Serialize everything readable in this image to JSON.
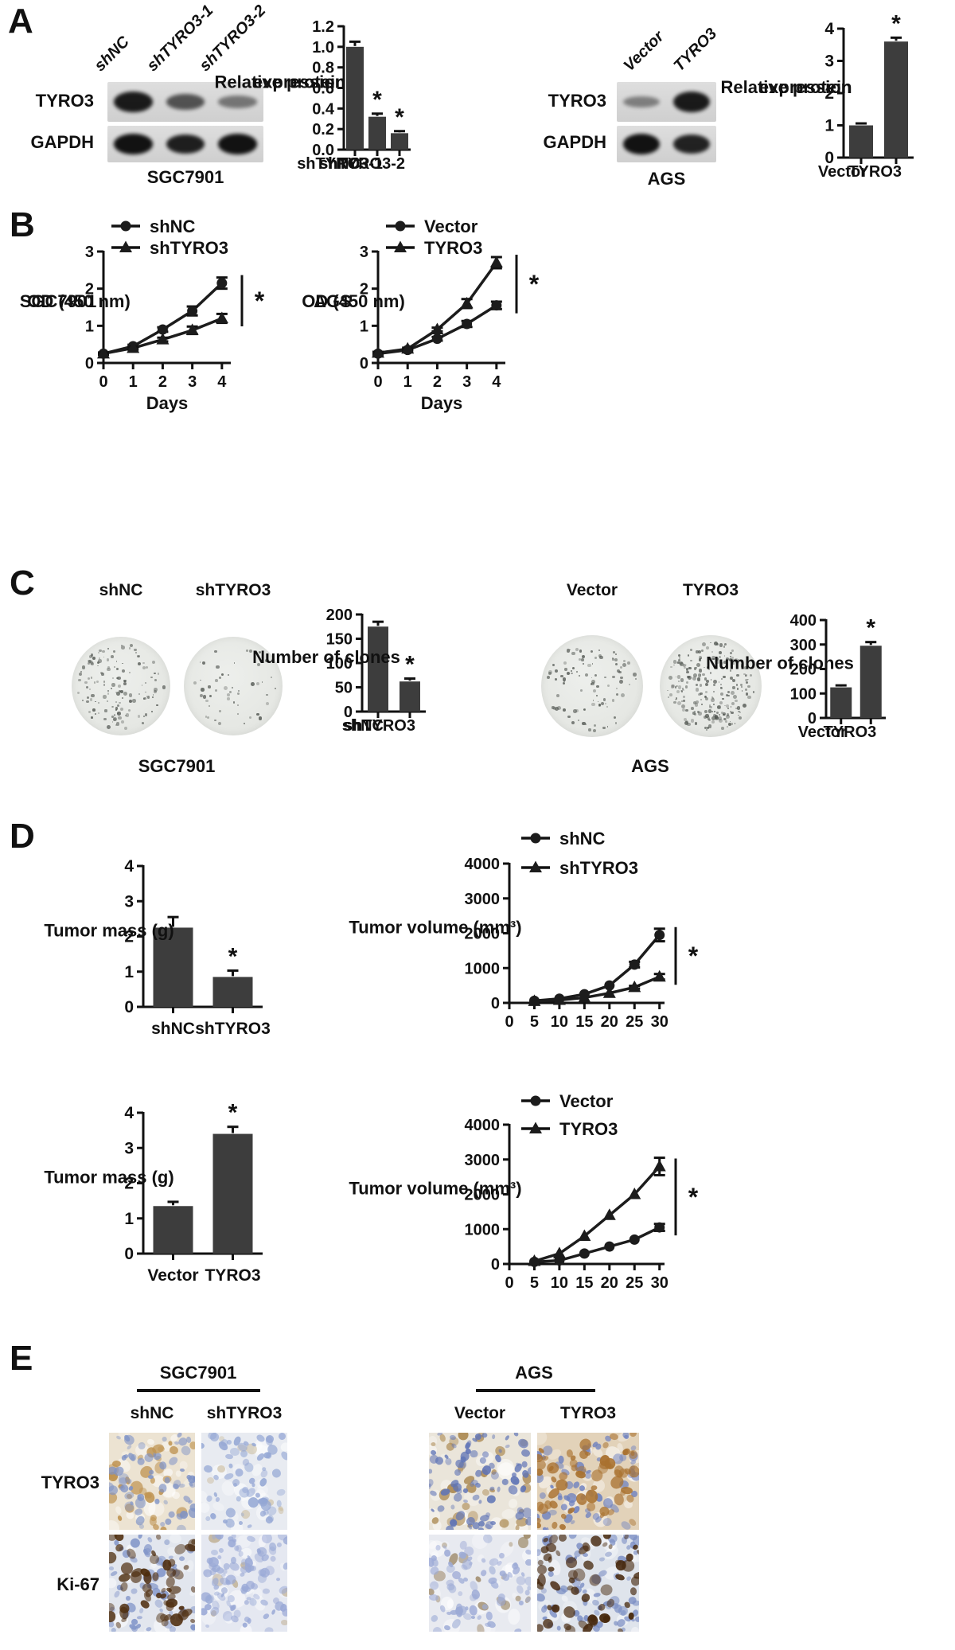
{
  "colors": {
    "ink": "#111111",
    "bar": "#3d3d3d",
    "blot_bg": "#d6d6d6"
  },
  "panels": {
    "A": {
      "label": "A",
      "left": {
        "lane_labels": [
          "shNC",
          "shTYRO3-1",
          "shTYRO3-2"
        ],
        "blot_rows": [
          {
            "label": "TYRO3",
            "bands": [
              0.95,
              0.6,
              0.38
            ]
          },
          {
            "label": "GAPDH",
            "bands": [
              1,
              0.92,
              1
            ]
          }
        ],
        "cell_line": "SGC7901"
      },
      "right": {
        "lane_labels": [
          "Vector",
          "TYRO3"
        ],
        "blot_rows": [
          {
            "label": "TYRO3",
            "bands": [
              0.32,
              0.95
            ]
          },
          {
            "label": "GAPDH",
            "bands": [
              1,
              0.9
            ]
          }
        ],
        "cell_line": "AGS"
      }
    },
    "B": {
      "label": "B"
    },
    "C": {
      "label": "C",
      "left": {
        "dish_labels": [
          "shNC",
          "shTYRO3"
        ],
        "cell_line": "SGC7901"
      },
      "right": {
        "dish_labels": [
          "Vector",
          "TYRO3"
        ],
        "cell_line": "AGS"
      }
    },
    "D": {
      "label": "D"
    },
    "E": {
      "label": "E",
      "groups": [
        {
          "name": "SGC7901",
          "columns": [
            "shNC",
            "shTYRO3"
          ]
        },
        {
          "name": "AGS",
          "columns": [
            "Vector",
            "TYRO3"
          ]
        }
      ],
      "rows": [
        "TYRO3",
        "Ki-67"
      ],
      "stain_colors": {
        "hematoxylin_blue": "#7b8ec4",
        "dab_brown": "#8a5a22"
      },
      "tiles": [
        {
          "row": "TYRO3",
          "column": "shNC",
          "base": "#ece3d2",
          "nucleus": "#7e92c6",
          "stain": "#bf9452",
          "nucleus_density": 0.5,
          "stain_density": 0.3,
          "stain_on_top": false
        },
        {
          "row": "TYRO3",
          "column": "shTYRO3",
          "base": "#e8ebf1",
          "nucleus": "#93a6d4",
          "stain": "#cfc2a8",
          "nucleus_density": 0.5,
          "stain_density": 0.08,
          "stain_on_top": false
        },
        {
          "row": "TYRO3",
          "column": "Vector",
          "base": "#eae5da",
          "nucleus": "#5f74b6",
          "stain": "#ab8850",
          "nucleus_density": 0.65,
          "stain_density": 0.28,
          "stain_on_top": false
        },
        {
          "row": "TYRO3",
          "column": "TYRO3",
          "base": "#e2d2b9",
          "nucleus": "#6c80c0",
          "stain": "#a9712f",
          "nucleus_density": 0.5,
          "stain_density": 0.55,
          "stain_on_top": true
        },
        {
          "row": "Ki-67",
          "column": "shNC",
          "base": "#e2e6ee",
          "nucleus": "#8396c9",
          "stain": "#4e2d0e",
          "nucleus_density": 0.5,
          "stain_density": 0.5,
          "stain_on_top": true
        },
        {
          "row": "Ki-67",
          "column": "shTYRO3",
          "base": "#e5e8f1",
          "nucleus": "#9aa9d6",
          "stain": "#c2b297",
          "nucleus_density": 0.75,
          "stain_density": 0.06,
          "stain_on_top": false
        },
        {
          "row": "Ki-67",
          "column": "Vector",
          "base": "#e8eaf0",
          "nucleus": "#9dabd6",
          "stain": "#a08c6c",
          "nucleus_density": 0.6,
          "stain_density": 0.15,
          "stain_on_top": false
        },
        {
          "row": "Ki-67",
          "column": "TYRO3",
          "base": "#dfe4ec",
          "nucleus": "#7b8ec4",
          "stain": "#45260b",
          "nucleus_density": 0.55,
          "stain_density": 0.55,
          "stain_on_top": true
        }
      ]
    }
  },
  "chart_data": [
    {
      "id": "sgc7901-relative-protein-expression",
      "type": "bar",
      "categories": [
        "shNC",
        "shTYRO3-1",
        "shTYRO3-2"
      ],
      "values": [
        1.0,
        0.32,
        0.16
      ],
      "errors": [
        0.05,
        0.03,
        0.02
      ],
      "sig": [
        "",
        "*",
        "*"
      ],
      "ylabel_lines": [
        "Relative protein",
        "expression"
      ],
      "ylim": [
        0,
        1.2
      ],
      "yticks": [
        0,
        0.2,
        0.4,
        0.6,
        0.8,
        1.0,
        1.2
      ],
      "ytick_decimals": 1
    },
    {
      "id": "ags-relative-protein-expression",
      "type": "bar",
      "categories": [
        "Vector",
        "TYRO3"
      ],
      "values": [
        1.0,
        3.6
      ],
      "errors": [
        0.06,
        0.12
      ],
      "sig": [
        "",
        "*"
      ],
      "ylabel_lines": [
        "Relative protein",
        "expression"
      ],
      "ylim": [
        0,
        4
      ],
      "yticks": [
        0,
        1,
        2,
        3,
        4
      ],
      "ytick_decimals": 0
    },
    {
      "id": "sgc7901-cck8-growth",
      "type": "line",
      "x": [
        0,
        1,
        2,
        3,
        4
      ],
      "xticks": [
        0,
        1,
        2,
        3,
        4
      ],
      "xlim": [
        0,
        4.3
      ],
      "xlabel": "Days",
      "ylabel_lines": [
        "SGC7901",
        "OD (450 nm)"
      ],
      "ylim": [
        0,
        3
      ],
      "yticks": [
        0,
        1,
        2,
        3
      ],
      "series": [
        {
          "name": "shNC",
          "marker": "circle",
          "values": [
            0.25,
            0.45,
            0.9,
            1.4,
            2.15
          ],
          "errors": [
            0.03,
            0.04,
            0.06,
            0.12,
            0.15
          ]
        },
        {
          "name": "shTYRO3",
          "marker": "triangle",
          "values": [
            0.25,
            0.4,
            0.63,
            0.88,
            1.2
          ],
          "errors": [
            0.03,
            0.04,
            0.05,
            0.1,
            0.12
          ]
        }
      ],
      "sig": "*"
    },
    {
      "id": "ags-cck8-growth",
      "type": "line",
      "x": [
        0,
        1,
        2,
        3,
        4
      ],
      "xticks": [
        0,
        1,
        2,
        3,
        4
      ],
      "xlim": [
        0,
        4.3
      ],
      "xlabel": "Days",
      "ylabel_lines": [
        "AGS",
        "OD (450 nm)"
      ],
      "ylim": [
        0,
        3
      ],
      "yticks": [
        0,
        1,
        2,
        3
      ],
      "series": [
        {
          "name": "Vector",
          "marker": "circle",
          "values": [
            0.25,
            0.35,
            0.65,
            1.05,
            1.55
          ],
          "errors": [
            0.03,
            0.03,
            0.05,
            0.08,
            0.1
          ]
        },
        {
          "name": "TYRO3",
          "marker": "triangle",
          "values": [
            0.27,
            0.38,
            0.9,
            1.6,
            2.7
          ],
          "errors": [
            0.03,
            0.03,
            0.05,
            0.12,
            0.15
          ]
        }
      ],
      "sig": "*"
    },
    {
      "id": "sgc7901-number-of-clones",
      "type": "bar",
      "categories": [
        "shNC",
        "shTYRO3"
      ],
      "values": [
        175,
        62
      ],
      "errors": [
        10,
        6
      ],
      "sig": [
        "",
        "*"
      ],
      "ylabel_lines": [
        "Number of clones"
      ],
      "ylim": [
        0,
        200
      ],
      "yticks": [
        0,
        50,
        100,
        150,
        200
      ],
      "ytick_decimals": 0
    },
    {
      "id": "ags-number-of-clones",
      "type": "bar",
      "categories": [
        "Vector",
        "TYRO3"
      ],
      "values": [
        125,
        295
      ],
      "errors": [
        8,
        15
      ],
      "sig": [
        "",
        "*"
      ],
      "ylabel_lines": [
        "Number of clones"
      ],
      "ylim": [
        0,
        400
      ],
      "yticks": [
        0,
        100,
        200,
        300,
        400
      ],
      "ytick_decimals": 0
    },
    {
      "id": "shnc-tumor-mass",
      "type": "bar",
      "categories": [
        "shNC",
        "shTYRO3"
      ],
      "values": [
        2.25,
        0.85
      ],
      "errors": [
        0.3,
        0.18
      ],
      "sig": [
        "",
        "*"
      ],
      "ylabel_lines": [
        "Tumor mass (g)"
      ],
      "ylim": [
        0,
        4
      ],
      "yticks": [
        0,
        1,
        2,
        3,
        4
      ],
      "ytick_decimals": 0
    },
    {
      "id": "shnc-tumor-volume",
      "type": "line",
      "x": [
        5,
        10,
        15,
        20,
        25,
        30
      ],
      "xticks": [
        0,
        5,
        10,
        15,
        20,
        25,
        30
      ],
      "xlim": [
        0,
        31
      ],
      "xlabel": "",
      "ylabel_lines": [
        "Tumor volume (mm³)"
      ],
      "ylim": [
        0,
        4000
      ],
      "yticks": [
        0,
        1000,
        2000,
        3000,
        4000
      ],
      "series": [
        {
          "name": "shNC",
          "marker": "circle",
          "values": [
            60,
            120,
            250,
            500,
            1100,
            1950
          ],
          "errors": [
            0,
            0,
            0,
            0,
            80,
            180
          ]
        },
        {
          "name": "shTYRO3",
          "marker": "triangle",
          "values": [
            50,
            80,
            150,
            280,
            450,
            750
          ],
          "errors": [
            0,
            0,
            0,
            0,
            40,
            80
          ]
        }
      ],
      "sig": "*"
    },
    {
      "id": "vector-tumor-mass",
      "type": "bar",
      "categories": [
        "Vector",
        "TYRO3"
      ],
      "values": [
        1.35,
        3.4
      ],
      "errors": [
        0.12,
        0.2
      ],
      "sig": [
        "",
        "*"
      ],
      "ylabel_lines": [
        "Tumor mass (g)"
      ],
      "ylim": [
        0,
        4
      ],
      "yticks": [
        0,
        1,
        2,
        3,
        4
      ],
      "ytick_decimals": 0
    },
    {
      "id": "vector-tumor-volume",
      "type": "line",
      "x": [
        5,
        10,
        15,
        20,
        25,
        30
      ],
      "xticks": [
        0,
        5,
        10,
        15,
        20,
        25,
        30
      ],
      "xlim": [
        0,
        31
      ],
      "xlabel": "",
      "ylabel_lines": [
        "Tumor volume (mm³)"
      ],
      "ylim": [
        0,
        4000
      ],
      "yticks": [
        0,
        1000,
        2000,
        3000,
        4000
      ],
      "series": [
        {
          "name": "Vector",
          "marker": "circle",
          "values": [
            60,
            100,
            300,
            500,
            700,
            1050
          ],
          "errors": [
            0,
            0,
            0,
            0,
            0,
            100
          ]
        },
        {
          "name": "TYRO3",
          "marker": "triangle",
          "values": [
            80,
            300,
            800,
            1400,
            2000,
            2800
          ],
          "errors": [
            0,
            0,
            0,
            0,
            0,
            250
          ]
        }
      ],
      "sig": "*"
    }
  ]
}
